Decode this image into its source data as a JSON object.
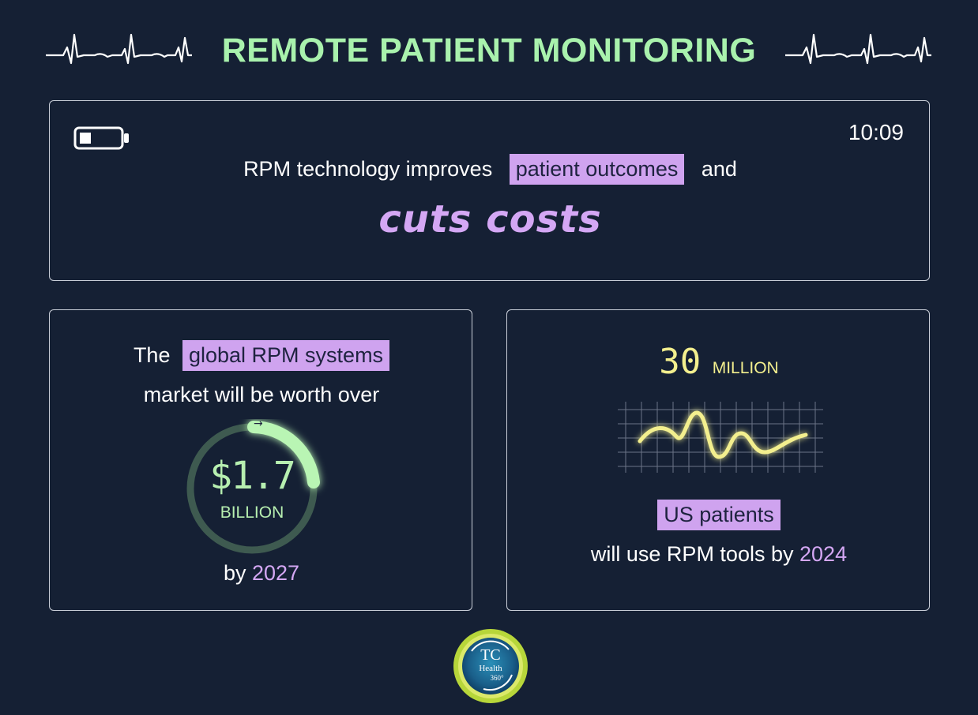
{
  "title": "REMOTE PATIENT MONITORING",
  "top_panel": {
    "time": "10:09",
    "line1_before": "RPM technology improves",
    "line1_highlight": "patient outcomes",
    "line1_after": "and",
    "line2": "cuts costs"
  },
  "left_panel": {
    "line1_before": "The",
    "line1_highlight": "global RPM systems",
    "line2": "market will be worth over",
    "value": "$1.7",
    "unit": "BILLION",
    "by_label": "by",
    "year": "2027",
    "arrow": "→"
  },
  "right_panel": {
    "number": "30",
    "unit": "MILLION",
    "highlight": "US patients",
    "line2_before": "will use RPM tools by",
    "year": "2024"
  },
  "logo": {
    "text_top": "TC",
    "text_mid": "Health",
    "text_bottom": "360°"
  },
  "colors": {
    "background": "#152034",
    "title_green": "#a9f2ad",
    "highlight_purple": "#cfa3ef",
    "digital_yellow": "#f3ef8e",
    "panel_border": "#c9ced8"
  }
}
